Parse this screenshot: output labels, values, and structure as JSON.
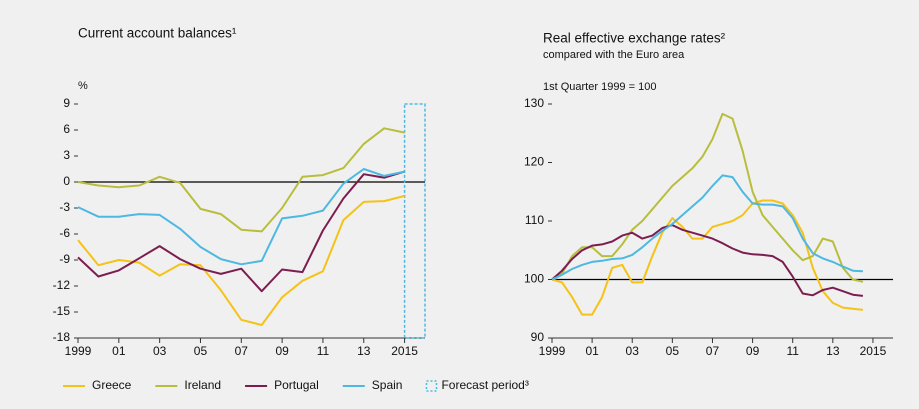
{
  "chart_data": [
    {
      "type": "line",
      "title": "Current account balances¹",
      "y_label": "%",
      "x": [
        1999,
        2000,
        2001,
        2002,
        2003,
        2004,
        2005,
        2006,
        2007,
        2008,
        2009,
        2010,
        2011,
        2012,
        2013,
        2014,
        2015
      ],
      "series": [
        {
          "name": "Greece",
          "color": "#f5c218",
          "values": [
            -6.7,
            -9.6,
            -9.0,
            -9.3,
            -10.8,
            -9.5,
            -9.6,
            -12.5,
            -15.9,
            -16.5,
            -13.3,
            -11.4,
            -10.3,
            -4.4,
            -2.3,
            -2.2,
            -1.6
          ]
        },
        {
          "name": "Ireland",
          "color": "#b8be3c",
          "values": [
            0,
            -0.4,
            -0.6,
            -0.4,
            0.6,
            -0.1,
            -3.1,
            -3.7,
            -5.5,
            -5.7,
            -3.0,
            0.6,
            0.8,
            1.6,
            4.4,
            6.2,
            5.7
          ]
        },
        {
          "name": "Portugal",
          "color": "#7b1e4f",
          "values": [
            -8.7,
            -10.9,
            -10.2,
            -8.8,
            -7.4,
            -8.9,
            -10.0,
            -10.6,
            -10.0,
            -12.6,
            -10.1,
            -10.4,
            -5.6,
            -1.9,
            0.9,
            0.5,
            1.2
          ]
        },
        {
          "name": "Spain",
          "color": "#4db8e2",
          "values": [
            -2.9,
            -4.0,
            -4.0,
            -3.7,
            -3.8,
            -5.4,
            -7.5,
            -8.9,
            -9.5,
            -9.1,
            -4.2,
            -3.9,
            -3.3,
            -0.2,
            1.5,
            0.7,
            1.2
          ]
        }
      ],
      "forecast": {
        "name": "Forecast period³",
        "color": "#4db8e2",
        "xlim": [
          2015,
          2016
        ]
      },
      "reference_line": 0,
      "xlim": [
        1999,
        2016
      ],
      "xticks": [
        1999,
        {
          "value": 2001,
          "label": "01"
        },
        {
          "value": 2003,
          "label": "03"
        },
        {
          "value": 2005,
          "label": "05"
        },
        {
          "value": 2007,
          "label": "07"
        },
        {
          "value": 2009,
          "label": "09"
        },
        {
          "value": 2011,
          "label": "11"
        },
        {
          "value": 2013,
          "label": "13"
        },
        2015
      ],
      "ylim": [
        -18,
        9
      ],
      "yticks": [
        -18,
        -15,
        -12,
        -9,
        -6,
        -3,
        0,
        3,
        6,
        9
      ],
      "legend_position": "bottom"
    },
    {
      "type": "line",
      "title": "Real effective exchange rates²",
      "subtitle": "compared with the Euro area",
      "note": "1st Quarter 1999 = 100",
      "x": [
        1999,
        1999.5,
        2000,
        2000.5,
        2001,
        2001.5,
        2002,
        2002.5,
        2003,
        2003.5,
        2004,
        2004.5,
        2005,
        2005.5,
        2006,
        2006.5,
        2007,
        2007.5,
        2008,
        2008.5,
        2009,
        2009.5,
        2010,
        2010.5,
        2011,
        2011.5,
        2012,
        2012.5,
        2013,
        2013.5,
        2014,
        2014.5
      ],
      "series": [
        {
          "name": "Greece",
          "color": "#f5c218",
          "values": [
            100,
            99.5,
            97,
            94,
            94,
            97,
            102,
            102.5,
            99.5,
            99.5,
            104,
            108,
            110.5,
            109,
            107,
            107,
            109,
            109.5,
            110,
            111,
            113,
            113.5,
            113.5,
            113,
            111,
            108,
            102,
            98,
            96,
            95.2,
            95,
            94.8
          ]
        },
        {
          "name": "Ireland",
          "color": "#b8be3c",
          "values": [
            100,
            101,
            104,
            105.5,
            105.5,
            104,
            104,
            106,
            108.5,
            110,
            112,
            114,
            116,
            117.5,
            119,
            121,
            124,
            128.3,
            127.5,
            122,
            115,
            111,
            109,
            107,
            105,
            103.3,
            104,
            107,
            106.5,
            102,
            100,
            99.6
          ]
        },
        {
          "name": "Portugal",
          "color": "#7b1e4f",
          "values": [
            100,
            101.5,
            103.5,
            105,
            105.8,
            106,
            106.5,
            107.5,
            108,
            107,
            107.5,
            108.8,
            109.3,
            108.5,
            108,
            107.5,
            107,
            106.2,
            105.3,
            104.6,
            104.3,
            104.2,
            104,
            103,
            100.5,
            97.6,
            97.3,
            98.2,
            98.6,
            98,
            97.4,
            97.2
          ]
        },
        {
          "name": "Spain",
          "color": "#4db8e2",
          "values": [
            100,
            100.8,
            101.8,
            102.5,
            103,
            103.2,
            103.5,
            103.6,
            104.2,
            105.5,
            107,
            108.3,
            109.5,
            111,
            112.5,
            114,
            116,
            117.8,
            117.5,
            115,
            113,
            112.8,
            112.8,
            112.5,
            110.5,
            107,
            104.5,
            103.6,
            103,
            102.2,
            101.5,
            101.4
          ]
        }
      ],
      "reference_line": 100,
      "xlim": [
        1999,
        2016
      ],
      "xticks": [
        1999,
        {
          "value": 2001,
          "label": "01"
        },
        {
          "value": 2003,
          "label": "03"
        },
        {
          "value": 2005,
          "label": "05"
        },
        {
          "value": 2007,
          "label": "07"
        },
        {
          "value": 2009,
          "label": "09"
        },
        {
          "value": 2011,
          "label": "11"
        },
        {
          "value": 2013,
          "label": "13"
        },
        2015
      ],
      "ylim": [
        90,
        130
      ],
      "yticks": [
        90,
        100,
        110,
        120,
        130
      ]
    }
  ]
}
